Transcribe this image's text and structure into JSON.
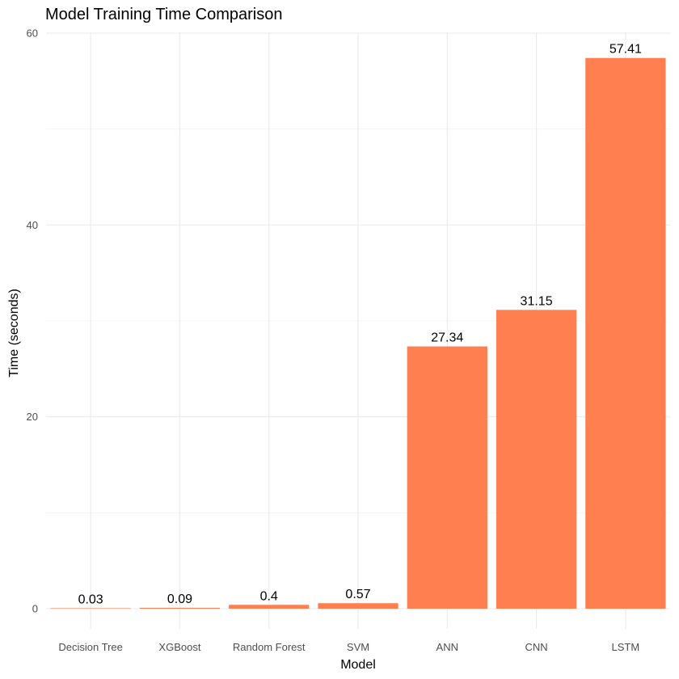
{
  "chart_data": {
    "type": "bar",
    "title": "Model Training Time Comparison",
    "xlabel": "Model",
    "ylabel": "Time (seconds)",
    "categories": [
      "Decision Tree",
      "XGBoost",
      "Random Forest",
      "SVM",
      "ANN",
      "CNN",
      "LSTM"
    ],
    "values": [
      0.03,
      0.09,
      0.4,
      0.57,
      27.34,
      31.15,
      57.41
    ],
    "data_labels": [
      "0.03",
      "0.09",
      "0.4",
      "0.57",
      "27.34",
      "31.15",
      "57.41"
    ],
    "yticks": [
      0,
      20,
      40,
      60
    ],
    "yticks_labels": [
      "0",
      "20",
      "40",
      "60"
    ],
    "ylim": [
      0,
      60
    ],
    "grid": true,
    "legend": "none",
    "bar_color": "#FF7F50"
  }
}
